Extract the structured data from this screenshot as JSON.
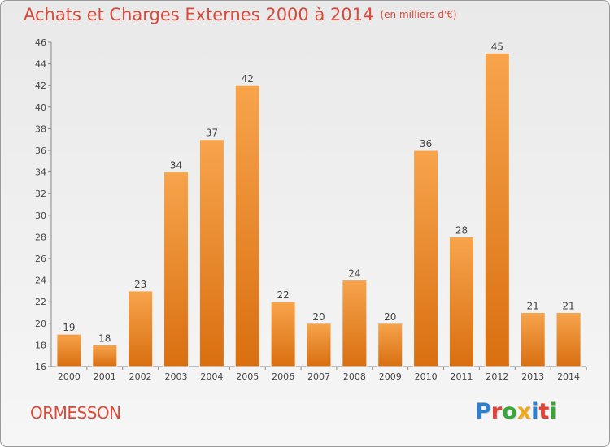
{
  "chart_data": {
    "type": "bar",
    "title": "Achats et Charges Externes 2000 à 2014",
    "unit_label": "(en milliers d'€)",
    "categories": [
      "2000",
      "2001",
      "2002",
      "2003",
      "2004",
      "2005",
      "2006",
      "2007",
      "2008",
      "2009",
      "2010",
      "2011",
      "2012",
      "2013",
      "2014"
    ],
    "values": [
      19,
      18,
      23,
      34,
      37,
      42,
      22,
      20,
      24,
      20,
      36,
      28,
      45,
      21,
      21
    ],
    "ylim": [
      16,
      46
    ],
    "yticks": [
      16,
      18,
      20,
      22,
      24,
      26,
      28,
      30,
      32,
      34,
      36,
      38,
      40,
      42,
      44,
      46
    ],
    "grid": false,
    "bar_color_top": "#f7a44c",
    "bar_color_bottom": "#d96f10"
  },
  "footer": {
    "place": "ORMESSON",
    "brand": "Proxiti"
  },
  "colors": {
    "title": "#d84a3a",
    "brand_letters": [
      "#2d7fd0",
      "#e0423a",
      "#3aa63a",
      "#f2a71b",
      "#2d7fd0",
      "#e0423a",
      "#3aa63a"
    ]
  }
}
